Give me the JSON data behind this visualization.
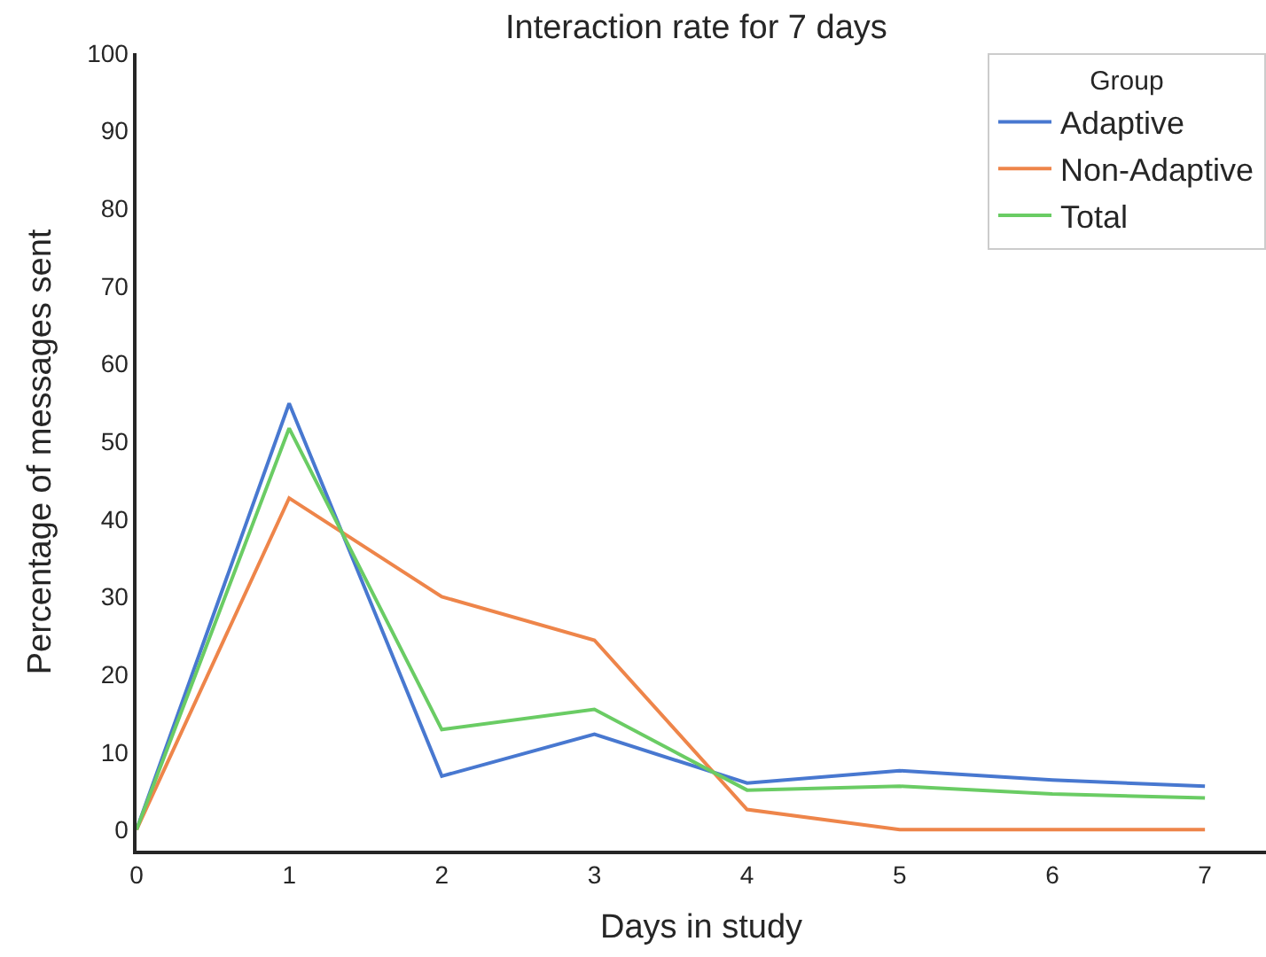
{
  "chart_data": {
    "type": "line",
    "title": "Interaction rate for 7 days",
    "xlabel": "Days in study",
    "ylabel": "Percentage of messages sent",
    "legend_title": "Group",
    "x": [
      0,
      1,
      2,
      3,
      4,
      5,
      6,
      7
    ],
    "series": [
      {
        "name": "Adaptive",
        "color": "#4878d0",
        "values": [
          0,
          54.9,
          6.9,
          12.3,
          6.0,
          7.6,
          6.4,
          5.6
        ]
      },
      {
        "name": "Non-Adaptive",
        "color": "#ee854a",
        "values": [
          0,
          42.7,
          30.0,
          24.4,
          2.6,
          0,
          0,
          0
        ]
      },
      {
        "name": "Total",
        "color": "#6acc64",
        "values": [
          0,
          51.7,
          12.9,
          15.5,
          5.1,
          5.6,
          4.6,
          4.1
        ]
      }
    ],
    "xlim": [
      0,
      7.4
    ],
    "xticks": [
      0,
      1,
      2,
      3,
      4,
      5,
      6,
      7
    ],
    "ylim": [
      -2.7,
      100
    ],
    "yticks": [
      0,
      10,
      20,
      30,
      40,
      50,
      60,
      70,
      80,
      90,
      100
    ],
    "grid": false,
    "legend": "top right",
    "marker": "none",
    "line_style": "solid"
  }
}
